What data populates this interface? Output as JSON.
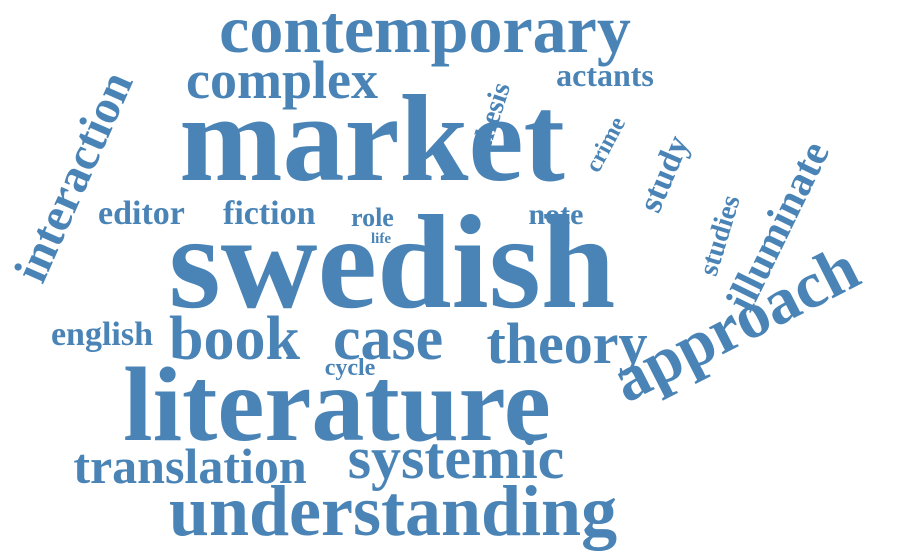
{
  "cloud": {
    "color": "#4a84b6",
    "words": [
      "contemporary",
      "complex",
      "actants",
      "market",
      "thesis",
      "crime",
      "study",
      "interaction",
      "illuminate",
      "studies",
      "editor",
      "fiction",
      "role",
      "life",
      "note",
      "swedish",
      "approach",
      "english",
      "book",
      "case",
      "theory",
      "cycle",
      "literature",
      "translation",
      "systemic",
      "understanding"
    ]
  }
}
